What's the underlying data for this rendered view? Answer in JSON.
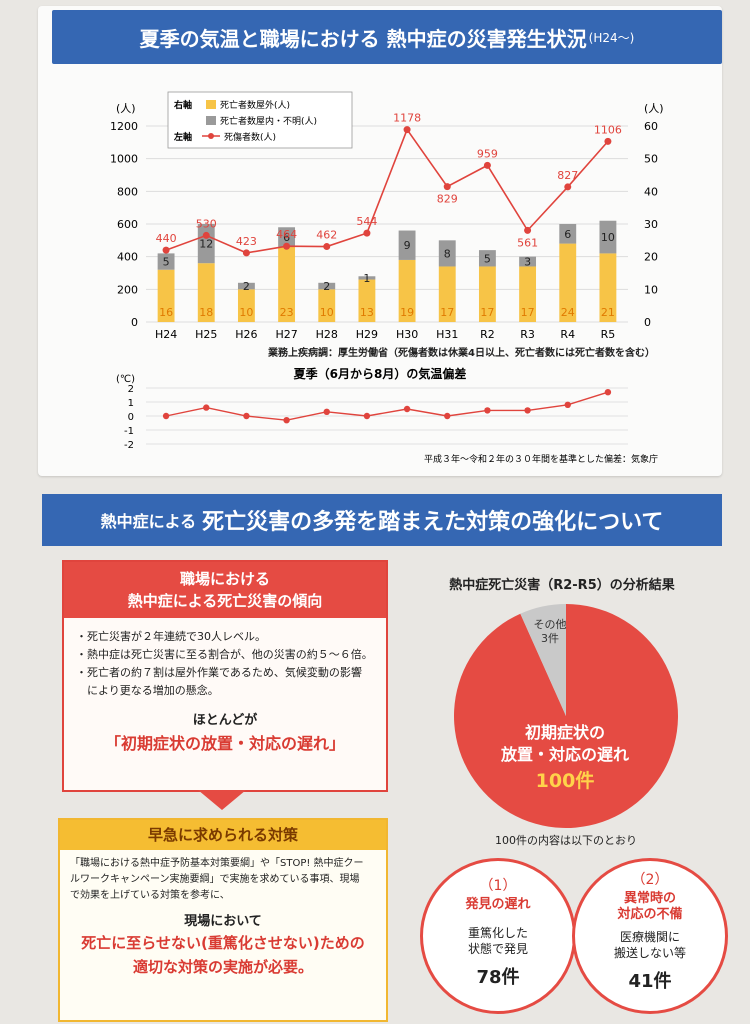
{
  "top": {
    "title_main": "夏季の気温と職場における 熱中症の災害発生状況",
    "title_suffix": "(H24〜)",
    "source": "業務上疾病調：厚生労働省（死傷者数は休業4日以上、死亡者数には死亡者数を含む）",
    "temp_title": "夏季（6月から8月）の気温偏差",
    "temp_source": "平成３年〜令和２年の３０年間を基準とした偏差：気象庁"
  },
  "chart_data": [
    {
      "type": "bar+line",
      "categories": [
        "H24",
        "H25",
        "H26",
        "H27",
        "H28",
        "H29",
        "H30",
        "H31",
        "R2",
        "R3",
        "R4",
        "R5"
      ],
      "left_axis_unit": "(人)",
      "right_axis_unit": "(人)",
      "left_ticks": [
        0,
        200,
        400,
        600,
        800,
        1000,
        1200
      ],
      "right_ticks": [
        0,
        10,
        20,
        30,
        40,
        50,
        60
      ],
      "legend": {
        "right_axis_label": "右軸",
        "left_axis_label": "左軸",
        "outdoor": "死亡者数屋外(人)",
        "indoor": "死亡者数屋内・不明(人)",
        "casualties": "死傷者数(人)"
      },
      "series": [
        {
          "name": "死亡者数屋外(人)",
          "color": "#f7c447",
          "values": [
            16,
            18,
            10,
            23,
            10,
            13,
            19,
            17,
            17,
            17,
            24,
            21
          ]
        },
        {
          "name": "死亡者数屋内・不明(人)",
          "color": "#9a9a9a",
          "values": [
            5,
            12,
            2,
            6,
            2,
            1,
            9,
            8,
            5,
            3,
            6,
            10
          ]
        },
        {
          "name": "死傷者数(人)",
          "color": "#e0443d",
          "values": [
            440,
            530,
            423,
            464,
            462,
            544,
            1178,
            829,
            959,
            561,
            827,
            1106
          ]
        }
      ],
      "ylim_left": [
        0,
        1200
      ],
      "ylim_right": [
        0,
        60
      ]
    },
    {
      "type": "line",
      "categories": [
        "H24",
        "H25",
        "H26",
        "H27",
        "H28",
        "H29",
        "H30",
        "H31",
        "R2",
        "R3",
        "R4",
        "R5"
      ],
      "unit": "(℃)",
      "ticks": [
        2,
        1,
        0,
        -1,
        -2
      ],
      "values": [
        0.0,
        0.6,
        0.0,
        -0.3,
        0.3,
        0.0,
        0.5,
        0.0,
        0.4,
        0.4,
        0.8,
        1.7
      ],
      "ylim": [
        -2,
        2
      ],
      "color": "#e0443d"
    }
  ],
  "bottom": {
    "banner_pre": "熱中症による",
    "banner_main": "死亡災害の多発を踏まえた対策の強化について",
    "left_head": [
      "職場における",
      "熱中症による死亡災害の傾向"
    ],
    "bullets": [
      "・死亡災害が２年連続で30人レベル。",
      "・熱中症は死亡災害に至る割合が、他の災害の約５〜６倍。",
      "・死亡者の約７割は屋外作業であるため、気候変動の影響",
      "　により更なる増加の懸念。"
    ],
    "mostly": "ほとんどが",
    "mostly_red": "「初期症状の放置・対応の遅れ」",
    "yellow_head": "早急に求められる対策",
    "yellow_text": [
      "「職場における熱中症予防基本対策要綱」や「STOP! 熱中症クー",
      "ルワークキャンペーン実施要綱」で実施を求めている事項、現場",
      "で効果を上げている対策を参考に、"
    ],
    "yellow_sub": "現場において",
    "yellow_red1": "死亡に至らせない(重篤化させない)ための",
    "yellow_red2": "適切な対策の実施が必要。",
    "right_title": "熱中症死亡災害（R2-R5）の分析結果",
    "pie": {
      "other_label": "その他",
      "other_count": "3件",
      "main_label1": "初期症状の",
      "main_label2": "放置・対応の遅れ",
      "main_count": "100件",
      "values": [
        100,
        3
      ],
      "colors": [
        "#e54b43",
        "#c9c9c9"
      ]
    },
    "breakdown_note": "100件の内容は以下のとおり",
    "c1": {
      "num": "（1）",
      "title": "発見の遅れ",
      "desc1": "重篤化した",
      "desc2": "状態で発見",
      "count": "78件"
    },
    "c2": {
      "num": "（2）",
      "title1": "異常時の",
      "title2": "対応の不備",
      "desc1": "医療機関に",
      "desc2": "搬送しない等",
      "count": "41件"
    }
  }
}
